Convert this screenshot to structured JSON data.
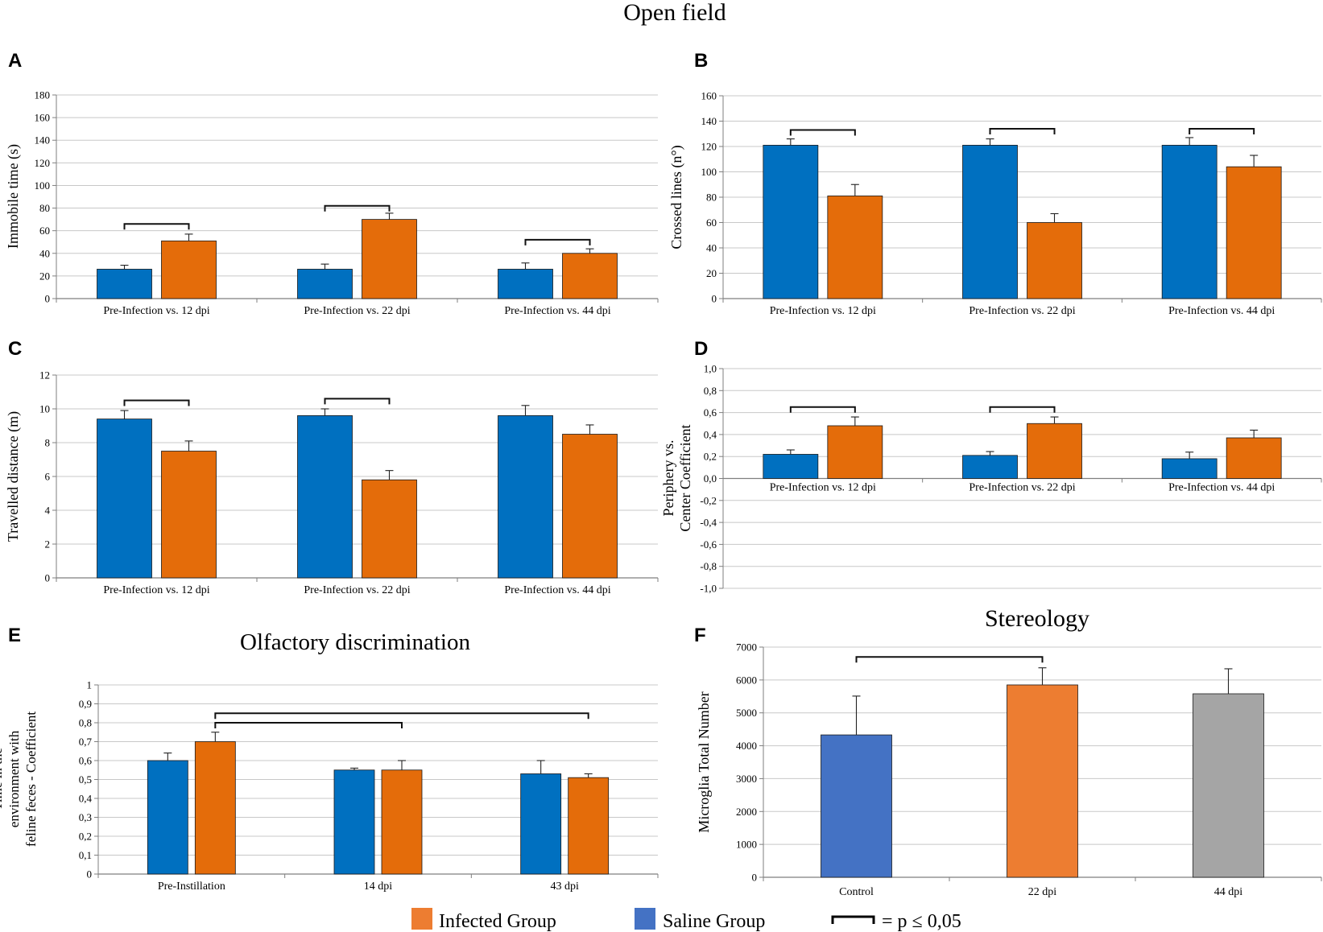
{
  "figure": {
    "section_titles": {
      "open_field": "Open field",
      "olfactory": "Olfactory discrimination",
      "stereology": "Stereology"
    },
    "legend": {
      "infected": "Infected Group",
      "saline": "Saline Group",
      "significance": "= p ≤ 0,05"
    },
    "colors": {
      "saline": "#0070c0",
      "infected": "#e46c0a",
      "stereo_control": "#4472c4",
      "stereo_22": "#ed7d31",
      "stereo_44": "#a5a5a5",
      "grid": "#c8c8c8",
      "axis": "#7f7f7f"
    }
  },
  "chart_data": [
    {
      "id": "A",
      "letter": "A",
      "type": "bar",
      "ylabel": "Immobile time (s)",
      "ylim": [
        0,
        180
      ],
      "ytick_step": 20,
      "yticks": [
        "0",
        "20",
        "40",
        "60",
        "80",
        "100",
        "120",
        "140",
        "160",
        "180"
      ],
      "categories": [
        "Pre-Infection vs. 12 dpi",
        "Pre-Infection vs. 22 dpi",
        "Pre-Infection vs. 44 dpi"
      ],
      "series": [
        {
          "name": "Saline Group",
          "color": "#0070c0",
          "values": [
            26,
            26,
            26
          ],
          "errors": [
            3.5,
            4.5,
            5.5
          ]
        },
        {
          "name": "Infected Group",
          "color": "#e46c0a",
          "values": [
            51,
            70,
            40
          ],
          "errors": [
            6,
            5.5,
            4
          ]
        }
      ],
      "significance": [
        [
          0,
          66
        ],
        [
          1,
          82
        ],
        [
          2,
          52
        ]
      ]
    },
    {
      "id": "B",
      "letter": "B",
      "type": "bar",
      "ylabel": "Crossed lines (n°)",
      "ylim": [
        0,
        160
      ],
      "ytick_step": 20,
      "yticks": [
        "0",
        "20",
        "40",
        "60",
        "80",
        "100",
        "120",
        "140",
        "160"
      ],
      "categories": [
        "Pre-Infection vs. 12 dpi",
        "Pre-Infection vs. 22 dpi",
        "Pre-Infection vs. 44 dpi"
      ],
      "series": [
        {
          "name": "Saline Group",
          "color": "#0070c0",
          "values": [
            121,
            121,
            121
          ],
          "errors": [
            5,
            5,
            6
          ]
        },
        {
          "name": "Infected Group",
          "color": "#e46c0a",
          "values": [
            81,
            60,
            104
          ],
          "errors": [
            9,
            7,
            9
          ]
        }
      ],
      "significance": [
        [
          0,
          133
        ],
        [
          1,
          134
        ],
        [
          2,
          134
        ]
      ]
    },
    {
      "id": "C",
      "letter": "C",
      "type": "bar",
      "ylabel": "Travelled distance (m)",
      "ylim": [
        0,
        12
      ],
      "ytick_step": 2,
      "yticks": [
        "0",
        "2",
        "4",
        "6",
        "8",
        "10",
        "12"
      ],
      "categories": [
        "Pre-Infection vs. 12 dpi",
        "Pre-Infection vs. 22 dpi",
        "Pre-Infection vs. 44 dpi"
      ],
      "series": [
        {
          "name": "Saline Group",
          "color": "#0070c0",
          "values": [
            9.4,
            9.6,
            9.6
          ],
          "errors": [
            0.5,
            0.4,
            0.6
          ]
        },
        {
          "name": "Infected Group",
          "color": "#e46c0a",
          "values": [
            7.5,
            5.8,
            8.5
          ],
          "errors": [
            0.6,
            0.55,
            0.55
          ]
        }
      ],
      "significance": [
        [
          0,
          10.5
        ],
        [
          1,
          10.6
        ]
      ]
    },
    {
      "id": "D",
      "letter": "D",
      "type": "bar",
      "ylabel": "Periphery vs. Center Coefficient",
      "ylim": [
        -1.0,
        1.0
      ],
      "ytick_step": 0.2,
      "yticks": [
        "-1,0",
        "-0,8",
        "-0,6",
        "-0,4",
        "-0,2",
        "0,0",
        "0,2",
        "0,4",
        "0,6",
        "0,8",
        "1,0"
      ],
      "categories": [
        "Pre-Infection vs. 12 dpi",
        "Pre-Infection vs. 22 dpi",
        "Pre-Infection vs. 44 dpi"
      ],
      "series": [
        {
          "name": "Saline Group",
          "color": "#0070c0",
          "values": [
            0.22,
            0.21,
            0.18
          ],
          "errors": [
            0.04,
            0.035,
            0.06
          ]
        },
        {
          "name": "Infected Group",
          "color": "#e46c0a",
          "values": [
            0.48,
            0.5,
            0.37
          ],
          "errors": [
            0.08,
            0.06,
            0.07
          ]
        }
      ],
      "significance": [
        [
          0,
          0.65
        ],
        [
          1,
          0.65
        ]
      ]
    },
    {
      "id": "E",
      "letter": "E",
      "type": "bar",
      "ylabel": "Time in the environment with feline feces - Coefficient",
      "ylim": [
        0,
        1
      ],
      "ytick_step": 0.1,
      "yticks": [
        "0",
        "0,1",
        "0,2",
        "0,3",
        "0,4",
        "0,5",
        "0,6",
        "0,7",
        "0,8",
        "0,9",
        "1"
      ],
      "categories": [
        "Pre-Instillation",
        "14 dpi",
        "43 dpi"
      ],
      "series": [
        {
          "name": "Saline Group",
          "color": "#0070c0",
          "values": [
            0.6,
            0.55,
            0.53
          ],
          "errors": [
            0.04,
            0.01,
            0.07
          ]
        },
        {
          "name": "Infected Group",
          "color": "#e46c0a",
          "values": [
            0.7,
            0.55,
            0.51
          ],
          "errors": [
            0.05,
            0.05,
            0.02
          ]
        }
      ],
      "brackets": [
        {
          "from_cat": 0,
          "to_cat": 1,
          "level": 0.8
        },
        {
          "from_cat": 0,
          "to_cat": 2,
          "level": 0.85
        }
      ]
    },
    {
      "id": "F",
      "letter": "F",
      "type": "bar",
      "ylabel": "Microglia Total Number",
      "ylim": [
        0,
        7000
      ],
      "ytick_step": 1000,
      "yticks": [
        "0",
        "1000",
        "2000",
        "3000",
        "4000",
        "5000",
        "6000",
        "7000"
      ],
      "categories": [
        "Control",
        "22 dpi",
        "44 dpi"
      ],
      "values": [
        4330,
        5850,
        5580
      ],
      "errors": [
        1180,
        520,
        760
      ],
      "colors": [
        "#4472c4",
        "#ed7d31",
        "#a5a5a5"
      ],
      "brackets": [
        {
          "from_cat": 0,
          "to_cat": 1,
          "level": 6700
        }
      ]
    }
  ]
}
